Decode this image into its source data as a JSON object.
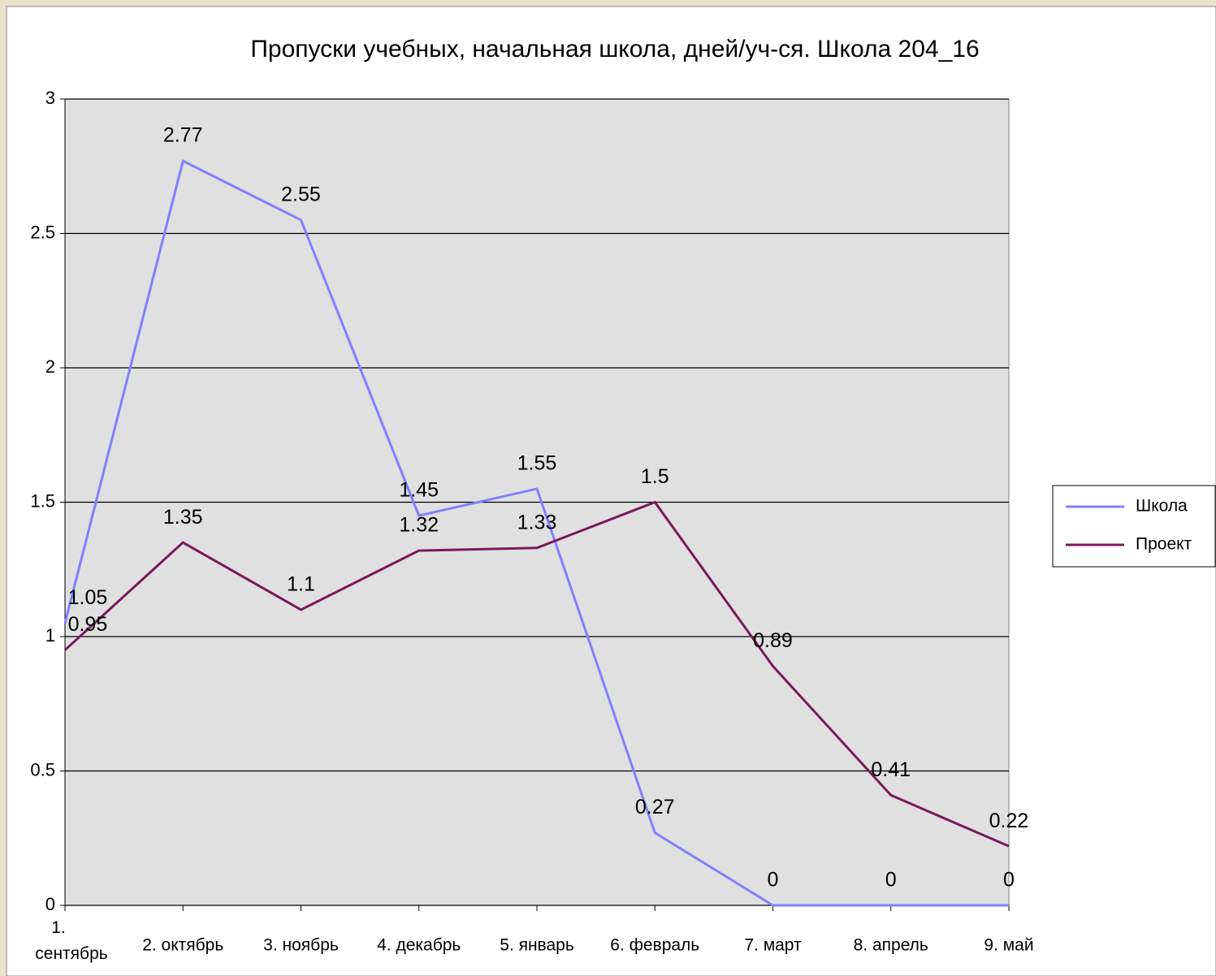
{
  "chart_data": {
    "type": "line",
    "title": "Пропуски учебных, начальная школа, дней/уч-ся. Школа 204_16",
    "categories": [
      "1. сентябрь",
      "2. октябрь",
      "3. ноябрь",
      "4. декабрь",
      "5. январь",
      "6. февраль",
      "7. март",
      "8. апрель",
      "9. май"
    ],
    "series": [
      {
        "name": "Школа",
        "color": "#8080ff",
        "values": [
          1.05,
          2.77,
          2.55,
          1.45,
          1.55,
          0.27,
          0,
          0,
          0
        ]
      },
      {
        "name": "Проект",
        "color": "#7a1a5a",
        "values": [
          0.95,
          1.35,
          1.1,
          1.32,
          1.33,
          1.5,
          0.89,
          0.41,
          0.22
        ]
      }
    ],
    "ylim": [
      0,
      3
    ],
    "yticks": [
      0,
      0.5,
      1,
      1.5,
      2,
      2.5,
      3
    ],
    "grid": true,
    "legend": "right"
  }
}
